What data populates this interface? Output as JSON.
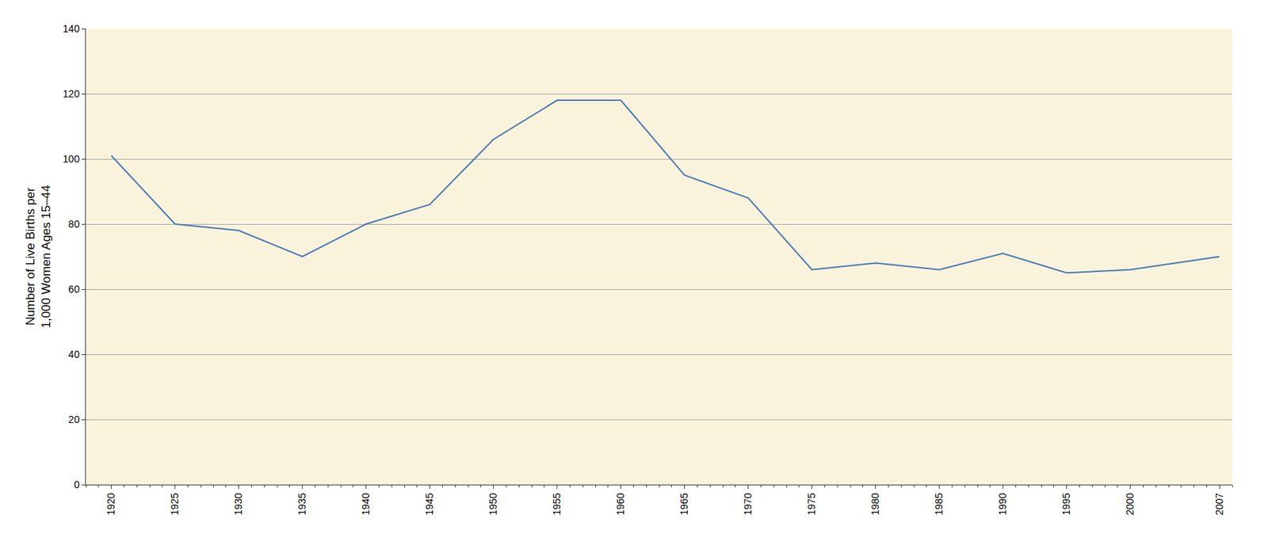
{
  "chart_data": {
    "type": "line",
    "ylabel": "Number of Live Births per\n1,000 Women Ages 15–44",
    "x": [
      1920,
      1925,
      1930,
      1935,
      1940,
      1945,
      1950,
      1955,
      1960,
      1965,
      1970,
      1975,
      1980,
      1985,
      1990,
      1995,
      2000,
      2007
    ],
    "values": [
      101,
      80,
      78,
      70,
      80,
      86,
      106,
      118,
      118,
      95,
      88,
      66,
      68,
      66,
      71,
      65,
      66,
      70
    ],
    "color": "#4A7AB5",
    "xlim": [
      1918,
      2008
    ],
    "xticks": [
      1920,
      1925,
      1930,
      1935,
      1940,
      1945,
      1950,
      1955,
      1960,
      1965,
      1970,
      1975,
      1980,
      1985,
      1990,
      1995,
      2000,
      2007
    ],
    "ylim": [
      0,
      140
    ],
    "yticks": [
      0,
      20,
      40,
      60,
      80,
      100,
      120,
      140
    ],
    "grid": "y"
  }
}
